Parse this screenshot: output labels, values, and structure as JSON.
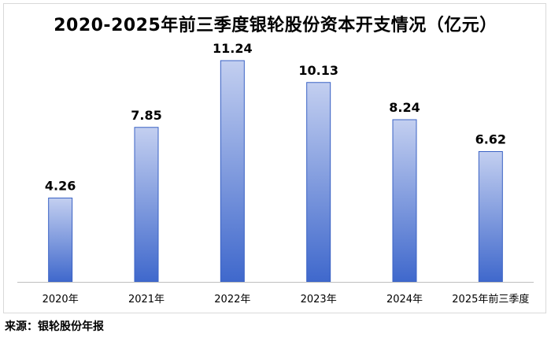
{
  "title": "2020-2025年前三季度银轮股份资本开支情况（亿元）",
  "source": "来源：银轮股份年报",
  "colors": {
    "bar_top": "#c3cff0",
    "bar_bottom": "#3f68cc",
    "bar_stroke": "#3a62c4",
    "axis": "#bfbfbf"
  },
  "chart_data": {
    "type": "bar",
    "title": "2020-2025年前三季度银轮股份资本开支情况（亿元）",
    "categories": [
      "2020年",
      "2021年",
      "2022年",
      "2023年",
      "2024年",
      "2025年前三季度"
    ],
    "values": [
      4.26,
      7.85,
      11.24,
      10.13,
      8.24,
      6.62
    ],
    "xlabel": "",
    "ylabel": "",
    "ylim": [
      0,
      12
    ],
    "grid": false,
    "legend": "none",
    "data_labels": true
  }
}
